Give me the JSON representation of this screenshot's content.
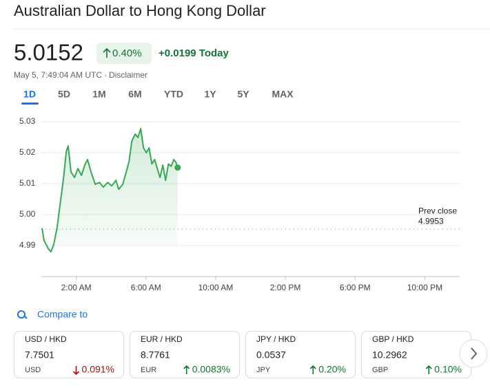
{
  "header": {
    "title": "Australian Dollar to Hong Kong Dollar",
    "price": "5.0152",
    "change_pct": "0.40%",
    "change_abs": "+0.0199 Today",
    "timestamp": "May 5, 7:49:04 AM UTC ·",
    "disclaimer": "Disclaimer"
  },
  "tabs": {
    "items": [
      "1D",
      "5D",
      "1M",
      "6M",
      "YTD",
      "1Y",
      "5Y",
      "MAX"
    ],
    "selected": 0
  },
  "chart_data": {
    "type": "line",
    "x": [
      0.04,
      0.16,
      0.4,
      0.55,
      0.71,
      0.91,
      1.11,
      1.27,
      1.43,
      1.54,
      1.7,
      1.9,
      2.1,
      2.3,
      2.49,
      2.65,
      2.85,
      3.09,
      3.33,
      3.56,
      3.8,
      4.04,
      4.28,
      4.44,
      4.67,
      4.87,
      5.03,
      5.19,
      5.39,
      5.54,
      5.7,
      5.86,
      6.02,
      6.18,
      6.34,
      6.5,
      6.65,
      6.81,
      6.97,
      7.13,
      7.29,
      7.45,
      7.6,
      7.72,
      7.82
    ],
    "series": [
      {
        "color": "#34a853",
        "values": [
          4.9956,
          4.9916,
          4.989,
          4.988,
          4.9904,
          4.996,
          5.0049,
          5.0116,
          5.0204,
          5.0222,
          5.0138,
          5.012,
          5.0149,
          5.0127,
          5.016,
          5.0178,
          5.0138,
          5.0098,
          5.0104,
          5.0089,
          5.0104,
          5.0093,
          5.0111,
          5.0082,
          5.0098,
          5.0138,
          5.0171,
          5.0238,
          5.026,
          5.0249,
          5.0278,
          5.0216,
          5.02,
          5.0216,
          5.0164,
          5.0178,
          5.0149,
          5.012,
          5.016,
          5.0111,
          5.0164,
          5.0156,
          5.0178,
          5.0169,
          5.0152
        ]
      }
    ],
    "xlim": [
      0,
      24
    ],
    "xticks": [
      {
        "value": 2,
        "label": "2:00 AM"
      },
      {
        "value": 6,
        "label": "6:00 AM"
      },
      {
        "value": 10,
        "label": "10:00 AM"
      },
      {
        "value": 14,
        "label": "2:00 PM"
      },
      {
        "value": 18,
        "label": "6:00 PM"
      },
      {
        "value": 22,
        "label": "10:00 PM"
      }
    ],
    "ylim": [
      4.98,
      5.03
    ],
    "yticks": [
      4.99,
      {
        "value": 5,
        "label": "5.00"
      },
      5.01,
      5.02,
      5.03
    ],
    "grid": true,
    "reference": {
      "label": "Prev close",
      "value": 4.9953
    }
  },
  "compare": {
    "label": "Compare to",
    "cards": [
      {
        "pair": "USD / HKD",
        "price": "7.7501",
        "code": "USD",
        "change": "0.091%",
        "direction": "down"
      },
      {
        "pair": "EUR / HKD",
        "price": "8.7761",
        "code": "EUR",
        "change": "0.0083%",
        "direction": "up"
      },
      {
        "pair": "JPY / HKD",
        "price": "0.0537",
        "code": "JPY",
        "change": "0.20%",
        "direction": "up"
      },
      {
        "pair": "GBP / HKD",
        "price": "10.2962",
        "code": "GBP",
        "change": "0.10%",
        "direction": "up"
      }
    ]
  }
}
